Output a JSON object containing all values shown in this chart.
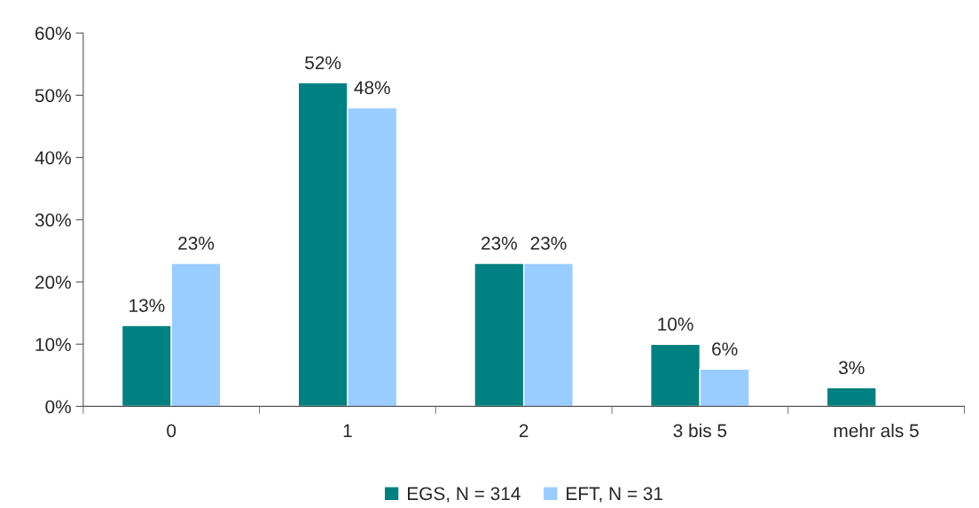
{
  "chart_data": {
    "type": "bar",
    "categories": [
      "0",
      "1",
      "2",
      "3 bis 5",
      "mehr als 5"
    ],
    "series": [
      {
        "name": "EGS, N = 314",
        "color": "#008080",
        "values": [
          13,
          52,
          23,
          10,
          3
        ],
        "value_labels": [
          "13%",
          "52%",
          "23%",
          "10%",
          "3%"
        ]
      },
      {
        "name": "EFT, N = 31",
        "color": "#99ccff",
        "values": [
          23,
          48,
          23,
          6,
          null
        ],
        "value_labels": [
          "23%",
          "48%",
          "23%",
          "6%",
          null
        ]
      }
    ],
    "ylim": [
      0,
      60
    ],
    "yticks": [
      {
        "value": 0,
        "label": "0%"
      },
      {
        "value": 10,
        "label": "10%"
      },
      {
        "value": 20,
        "label": "20%"
      },
      {
        "value": 30,
        "label": "30%"
      },
      {
        "value": 40,
        "label": "40%"
      },
      {
        "value": 50,
        "label": "50%"
      },
      {
        "value": 60,
        "label": "60%"
      }
    ],
    "legend": "bottom",
    "grid": false
  }
}
